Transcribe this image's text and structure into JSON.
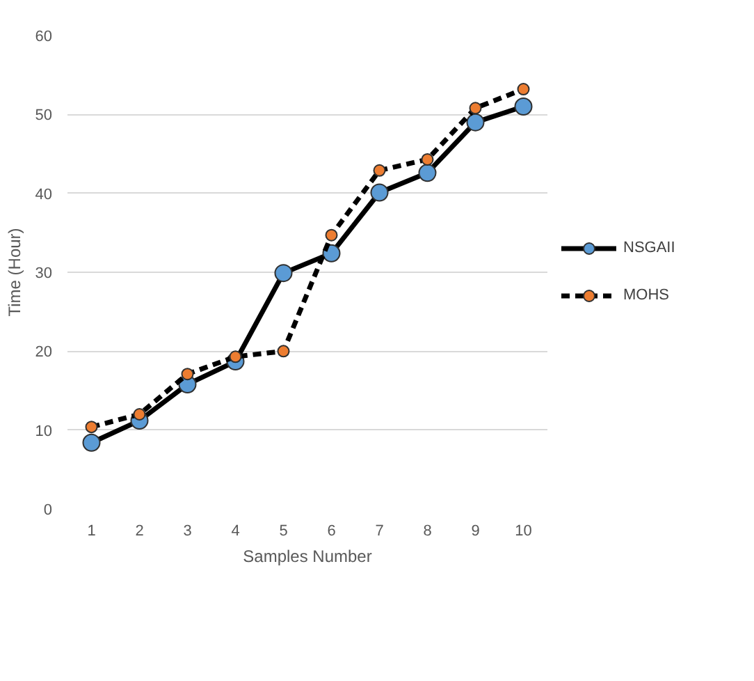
{
  "chart_data": {
    "type": "line",
    "xlabel": "Samples Number",
    "ylabel": "Time (Hour)",
    "categories": [
      "1",
      "2",
      "3",
      "4",
      "5",
      "6",
      "7",
      "8",
      "9",
      "10"
    ],
    "series": [
      {
        "name": "NSGAII",
        "color": "#5b9bd5",
        "line_style": "solid",
        "values": [
          8.4,
          11.2,
          15.8,
          18.7,
          29.9,
          32.4,
          40.1,
          42.6,
          49.0,
          51.0
        ]
      },
      {
        "name": "MOHS",
        "color": "#ed7d31",
        "line_style": "dashed",
        "values": [
          10.4,
          12.0,
          17.1,
          19.3,
          20.0,
          34.7,
          42.9,
          44.3,
          50.8,
          53.2
        ]
      }
    ],
    "ylim": [
      0,
      60
    ],
    "yticks": [
      0,
      10,
      20,
      30,
      40,
      50,
      60
    ],
    "grid": "y",
    "legend": "right",
    "marker": "circle"
  }
}
